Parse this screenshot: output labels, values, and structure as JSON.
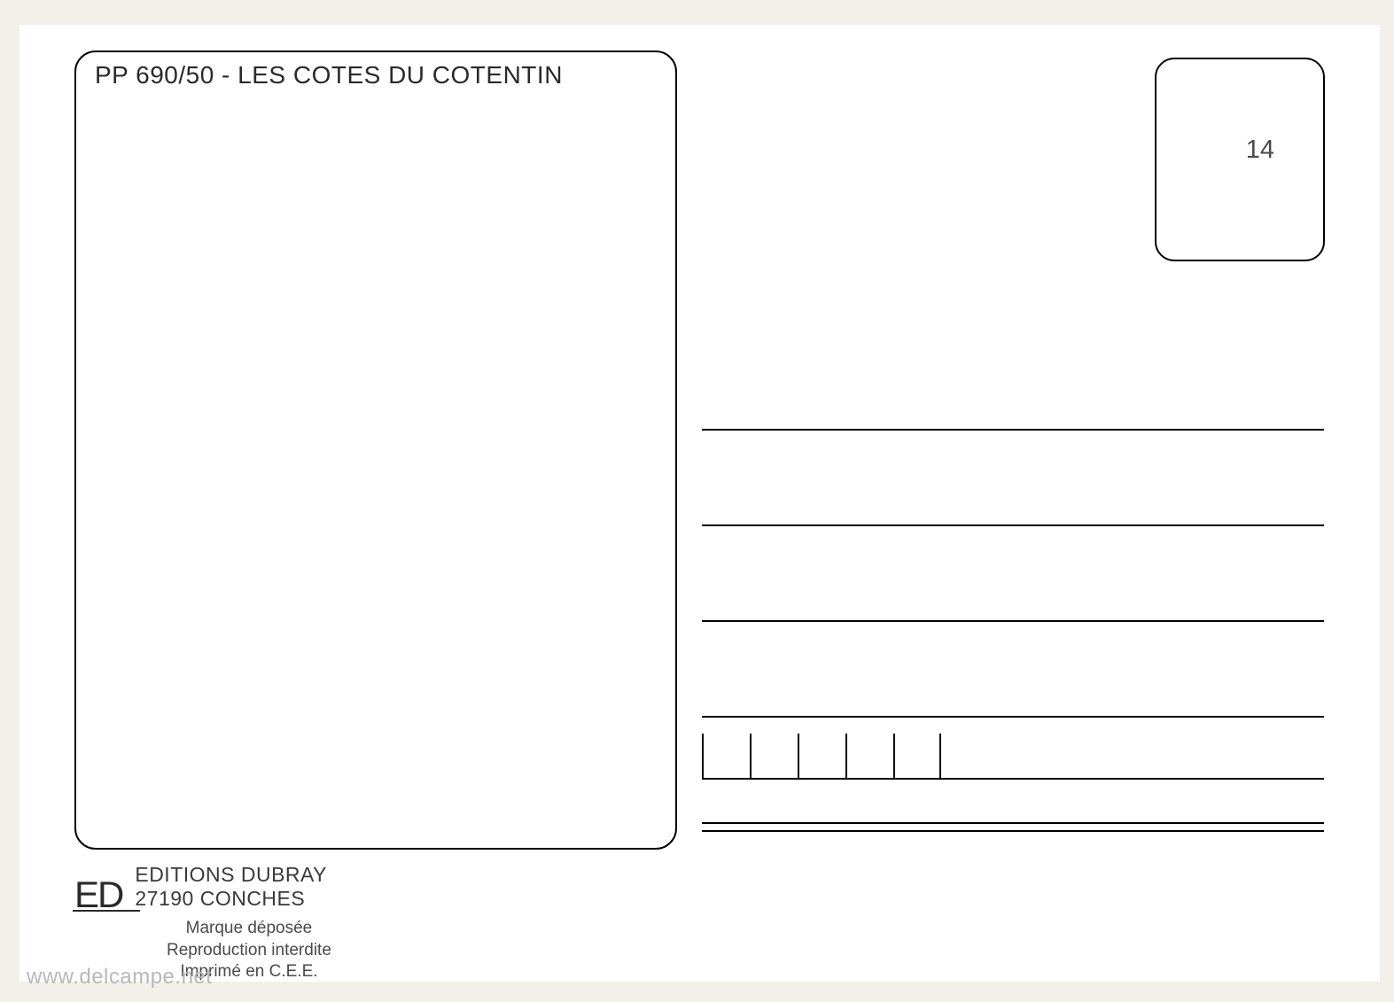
{
  "postcard": {
    "title": "PP 690/50 - LES COTES DU COTENTIN",
    "stamp_number": "14",
    "left_box": {
      "border_color": "#000000",
      "border_width": 2.5,
      "border_radius": 24
    },
    "stamp_box": {
      "border_color": "#000000",
      "border_width": 2.5,
      "border_radius": 22
    },
    "address_section": {
      "line_count": 4,
      "line_color": "#000000",
      "line_spacing": 106,
      "postal_box_count": 5
    },
    "publisher": {
      "logo": "ED",
      "name": "EDITIONS DUBRAY",
      "address": "27190 CONCHES"
    },
    "legal": {
      "line1": "Marque déposée",
      "line2": "Reproduction interdite",
      "line3": "Imprimé en C.E.E."
    }
  },
  "watermark": "www.delcampe.net",
  "colors": {
    "page_background": "#f2f0e8",
    "card_background": "#ffffff",
    "text_primary": "#2a2a2a",
    "text_secondary": "#4a4a4a",
    "watermark": "#b8b8b8",
    "line": "#000000"
  },
  "typography": {
    "title_fontsize": 28,
    "stamp_fontsize": 29,
    "publisher_fontsize": 23,
    "legal_fontsize": 19,
    "logo_fontsize": 42,
    "watermark_fontsize": 24
  }
}
